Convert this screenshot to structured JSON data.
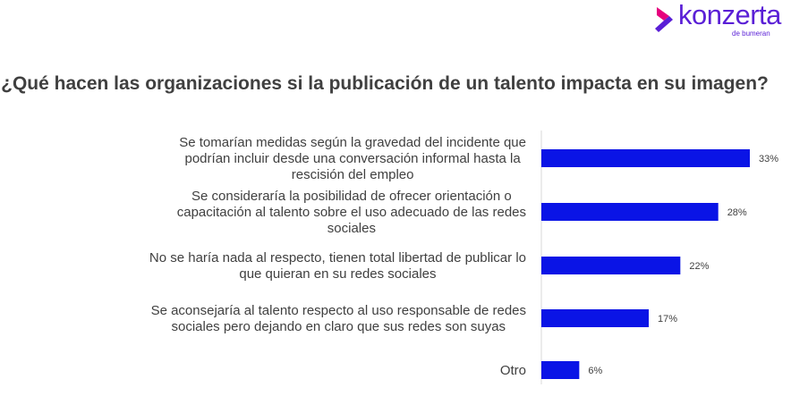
{
  "logo": {
    "name": "konzerta",
    "sub": "de bumeran",
    "colors": {
      "mark_top": "#e6007e",
      "mark_bottom": "#5a1fd6",
      "text": "#5a1fd6"
    }
  },
  "chart_data": {
    "type": "bar",
    "orientation": "horizontal",
    "title": "¿Qué hacen las organizaciones si la publicación de un talento impacta en su imagen?",
    "categories": [
      [
        "Se tomarían medidas según la gravedad del incidente que",
        "podrían incluir desde una conversación informal hasta la",
        "rescisión del empleo"
      ],
      [
        "Se consideraría la posibilidad de ofrecer orientación o",
        "capacitación al talento sobre el uso adecuado de las redes",
        "sociales"
      ],
      [
        "No se haría nada al respecto, tienen total libertad de publicar lo",
        "que quieran en su redes sociales"
      ],
      [
        "Se aconsejaría al talento respecto al uso responsable de redes",
        "sociales pero dejando en claro que sus redes son suyas"
      ],
      [
        "Otro"
      ]
    ],
    "values": [
      33,
      28,
      22,
      17,
      6
    ],
    "value_labels": [
      "33%",
      "28%",
      "22%",
      "17%",
      "6%"
    ],
    "unit": "%",
    "bar_color": "#0a14e6",
    "xlim": [
      0,
      33
    ],
    "axis_line": true,
    "grid": false
  }
}
